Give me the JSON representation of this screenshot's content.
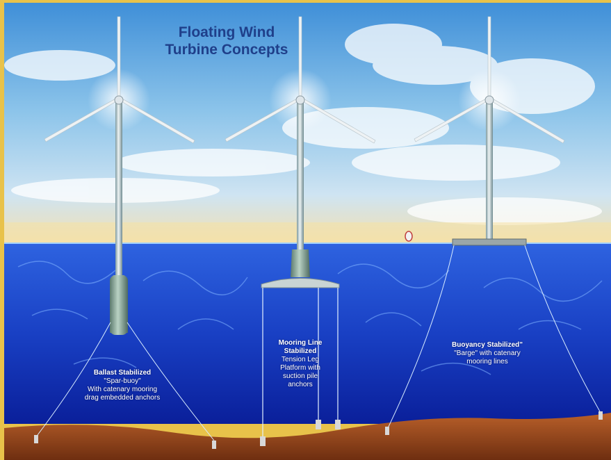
{
  "title": {
    "line1": "Floating Wind",
    "line2": "Turbine Concepts"
  },
  "concepts": [
    {
      "heading": "Ballast Stabilized",
      "lines": [
        "\"Spar-buoy\"",
        "With catenary mooring",
        "drag embedded anchors"
      ]
    },
    {
      "heading_lines": [
        "Mooring Line",
        "Stabilized"
      ],
      "lines": [
        "Tension Leg",
        "Platform with",
        "suction pile",
        "anchors"
      ]
    },
    {
      "heading": "Buoyancy Stabilized\"",
      "lines": [
        "\"Barge\" with catenary",
        "mooring lines"
      ]
    }
  ],
  "colors": {
    "frame": "#e8c24a",
    "title": "#1f3f8a",
    "sea_top": "#2e63e0",
    "sea_bottom": "#0a1f9a",
    "seabed": "#9a4a1c"
  }
}
